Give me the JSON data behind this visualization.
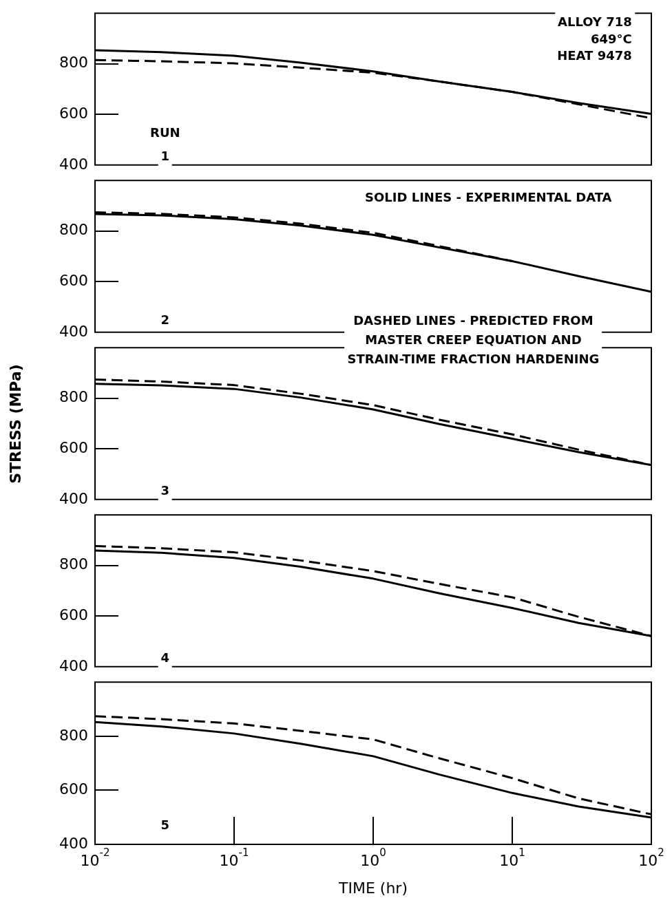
{
  "chart_data": [
    {
      "type": "line",
      "x": [
        0.01,
        0.03,
        0.1,
        0.3,
        1,
        3,
        10,
        30,
        100
      ],
      "xlim": [
        0.01,
        100
      ],
      "log": "x",
      "ylim": [
        400,
        1000
      ],
      "yticks": [
        400,
        600,
        800
      ],
      "tick_labels": "y",
      "grid": false,
      "legend": false,
      "marker": "none",
      "annotations": [
        "ALLOY 718",
        "649°C",
        "HEAT 9478",
        "RUN",
        "1"
      ],
      "series": [
        {
          "color": "#000000",
          "line_style": "solid",
          "values": [
            854,
            846,
            832,
            805,
            770,
            730,
            689,
            645,
            602
          ]
        },
        {
          "color": "#000000",
          "line_style": "dashed",
          "values": [
            815,
            810,
            802,
            785,
            765,
            730,
            689,
            640,
            585
          ]
        }
      ]
    },
    {
      "type": "line",
      "x": [
        0.01,
        0.03,
        0.1,
        0.3,
        1,
        3,
        10,
        30,
        100
      ],
      "xlim": [
        0.01,
        100
      ],
      "log": "x",
      "ylim": [
        400,
        1000
      ],
      "yticks": [
        400,
        600,
        800
      ],
      "tick_labels": "y",
      "grid": false,
      "legend": false,
      "marker": "none",
      "annotations": [
        "SOLID LINES - EXPERIMENTAL DATA",
        "2",
        "DASHED LINES - PREDICTED FROM\nMASTER CREEP EQUATION AND\nSTRAIN-TIME FRACTION HARDENING"
      ],
      "series": [
        {
          "color": "#000000",
          "line_style": "solid",
          "values": [
            867,
            862,
            847,
            822,
            785,
            735,
            681,
            622,
            560
          ]
        },
        {
          "color": "#000000",
          "line_style": "dashed",
          "values": [
            874,
            868,
            854,
            829,
            793,
            740,
            681,
            null,
            null
          ]
        }
      ]
    },
    {
      "type": "line",
      "x": [
        0.01,
        0.03,
        0.1,
        0.3,
        1,
        3,
        10,
        30,
        100
      ],
      "xlim": [
        0.01,
        100
      ],
      "log": "x",
      "ylim": [
        400,
        1000
      ],
      "yticks": [
        400,
        600,
        800
      ],
      "tick_labels": "y",
      "grid": false,
      "legend": false,
      "marker": "none",
      "ylabel": "STRESS (MPa)",
      "annotations": [
        "3"
      ],
      "series": [
        {
          "color": "#000000",
          "line_style": "solid",
          "values": [
            857,
            851,
            837,
            803,
            756,
            698,
            640,
            587,
            536
          ]
        },
        {
          "color": "#000000",
          "line_style": "dashed",
          "values": [
            874,
            866,
            852,
            818,
            773,
            715,
            657,
            597,
            536
          ]
        }
      ]
    },
    {
      "type": "line",
      "x": [
        0.01,
        0.03,
        0.1,
        0.3,
        1,
        3,
        10,
        30,
        100
      ],
      "xlim": [
        0.01,
        100
      ],
      "log": "x",
      "ylim": [
        400,
        1000
      ],
      "yticks": [
        400,
        600,
        800
      ],
      "tick_labels": "y",
      "grid": false,
      "legend": false,
      "marker": "none",
      "annotations": [
        "4"
      ],
      "series": [
        {
          "color": "#000000",
          "line_style": "solid",
          "values": [
            859,
            850,
            830,
            795,
            748,
            690,
            632,
            573,
            521
          ]
        },
        {
          "color": "#000000",
          "line_style": "dashed",
          "values": [
            877,
            868,
            852,
            820,
            778,
            727,
            674,
            597,
            521
          ]
        }
      ]
    },
    {
      "type": "line",
      "x": [
        0.01,
        0.03,
        0.1,
        0.3,
        1,
        3,
        10,
        30,
        100
      ],
      "xlim": [
        0.01,
        100
      ],
      "xticks": [
        {
          "value": 0.01,
          "label": "10$^{-2}$"
        },
        {
          "value": 0.1,
          "label": "10$^{-1}$"
        },
        {
          "value": 1,
          "label": "10$^{0}$"
        },
        {
          "value": 10,
          "label": "10$^{1}$"
        },
        {
          "value": 100,
          "label": "10$^{2}$"
        }
      ],
      "log": "x",
      "ylim": [
        400,
        1000
      ],
      "yticks": [
        400,
        600,
        800
      ],
      "xlabel": "TIME (hr)",
      "grid": false,
      "legend": false,
      "marker": "none",
      "annotations": [
        "5"
      ],
      "series": [
        {
          "color": "#000000",
          "line_style": "solid",
          "values": [
            852,
            836,
            810,
            772,
            726,
            658,
            590,
            540,
            499
          ]
        },
        {
          "color": "#000000",
          "line_style": "dashed",
          "values": [
            874,
            863,
            847,
            820,
            788,
            718,
            645,
            570,
            511
          ]
        }
      ]
    }
  ]
}
